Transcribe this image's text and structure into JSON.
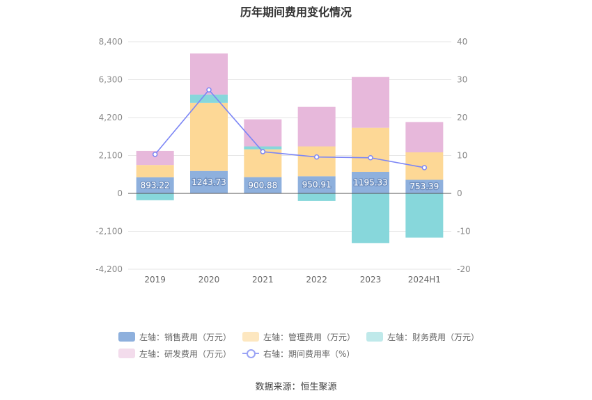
{
  "chart_data": {
    "type": "bar",
    "title": "历年期间费用变化情况",
    "categories": [
      "2019",
      "2020",
      "2021",
      "2022",
      "2023",
      "2024H1"
    ],
    "left_axis": {
      "ylim": [
        -4200,
        8400
      ],
      "ticks": [
        "8,400",
        "6,300",
        "4,200",
        "2,100",
        "0",
        "-2,100",
        "-4,200"
      ]
    },
    "right_axis": {
      "ylim": [
        -20,
        40
      ],
      "ticks": [
        "40",
        "30",
        "20",
        "10",
        "0",
        "-10",
        "-20"
      ]
    },
    "series": [
      {
        "name": "左轴：销售费用（万元）",
        "type": "bar",
        "axis": "left",
        "color": "#8eb0dd",
        "values": [
          893.22,
          1243.73,
          900.88,
          950.91,
          1195.33,
          753.39
        ],
        "labels": [
          "893.22",
          "1243.73",
          "900.88",
          "950.91",
          "1195.33",
          "753.39"
        ]
      },
      {
        "name": "左轴：管理费用（万元）",
        "type": "bar",
        "axis": "left",
        "color": "#fdd896",
        "values": [
          680,
          3770,
          1540,
          1650,
          2440,
          1520
        ]
      },
      {
        "name": "左轴：财务费用（万元）",
        "type": "bar",
        "axis": "left",
        "color": "#87d7db",
        "values": [
          -380,
          460,
          160,
          -420,
          -2750,
          -2450
        ]
      },
      {
        "name": "左轴：研发费用（万元）",
        "type": "bar",
        "axis": "left",
        "color": "#e7b8db",
        "values": [
          780,
          2280,
          1500,
          2190,
          2810,
          1680
        ]
      },
      {
        "name": "右轴：期间费用率（%）",
        "type": "line",
        "axis": "right",
        "color": "#7c86f5",
        "values": [
          10.3,
          27.3,
          11.0,
          9.6,
          9.4,
          6.8
        ]
      }
    ],
    "grid": true,
    "legend_position": "bottom"
  },
  "legend": {
    "row1": [
      "左轴：销售费用（万元）",
      "左轴：管理费用（万元）",
      "左轴：财务费用（万元）"
    ],
    "row2": [
      "左轴：研发费用（万元）",
      "右轴：期间费用率（%）"
    ]
  },
  "source_text": "数据来源：恒生聚源"
}
